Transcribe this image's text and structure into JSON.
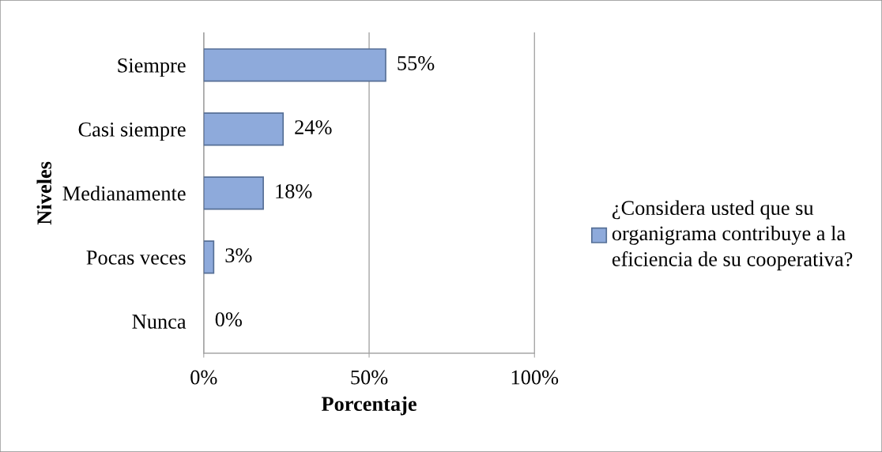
{
  "chart_data": {
    "type": "bar",
    "orientation": "horizontal",
    "categories": [
      "Siempre",
      "Casi siempre",
      "Medianamente",
      "Pocas veces",
      "Nunca"
    ],
    "series": [
      {
        "name": "¿Considera usted que su\norganigrama contribuye a la\neficiencia de su cooperativa?",
        "color": "#8eaadb",
        "values": [
          55,
          24,
          18,
          3,
          0
        ],
        "value_labels": [
          "55%",
          "24%",
          "18%",
          "3%",
          "0%"
        ]
      }
    ],
    "xlim": [
      0,
      100
    ],
    "xticks": [
      {
        "value": 0,
        "label": "0%"
      },
      {
        "value": 50,
        "label": "50%"
      },
      {
        "value": 100,
        "label": "100%"
      }
    ],
    "xlabel": "Porcentaje",
    "ylabel": "Niveles",
    "grid": "x",
    "legend": "right"
  }
}
